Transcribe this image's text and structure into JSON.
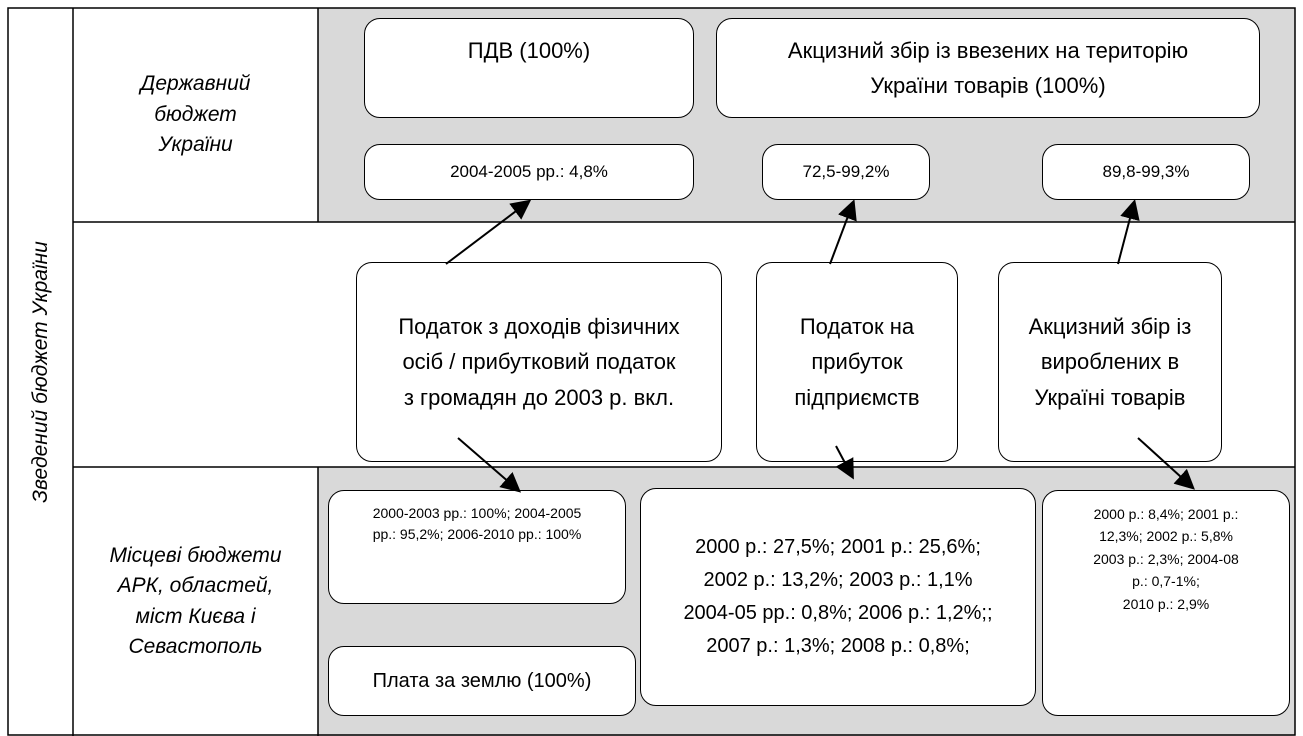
{
  "side_label": "Зведений бюджет України",
  "rows": [
    {
      "label": [
        "Державний",
        "бюджет",
        "України"
      ]
    },
    {
      "label": [
        "Місцеві бюджети",
        "АРК, областей,",
        "міст Києва і",
        "Севастополь"
      ]
    }
  ],
  "boxes": [
    {
      "lines": [
        "ПДВ (100%)"
      ]
    },
    {
      "lines": [
        "Акцизний збір із ввезених на територію",
        "України товарів (100%)"
      ]
    },
    {
      "lines": [
        "2004-2005 рр.: 4,8%"
      ]
    },
    {
      "lines": [
        "72,5-99,2%"
      ]
    },
    {
      "lines": [
        "89,8-99,3%"
      ]
    },
    {
      "lines": [
        "Податок з доходів фізичних",
        "осіб / прибутковий податок",
        "з громадян до 2003 р. вкл."
      ]
    },
    {
      "lines": [
        "Податок на",
        "прибуток",
        "підприємств"
      ]
    },
    {
      "lines": [
        "Акцизний збір із",
        "вироблених в",
        "Україні товарів"
      ]
    },
    {
      "lines": [
        "2000-2003 рр.: 100%; 2004-2005",
        "рр.: 95,2%; 2006-2010 рр.: 100%"
      ]
    },
    {
      "lines": [
        "Плата за землю (100%)"
      ]
    },
    {
      "lines": [
        "2000 р.: 27,5%; 2001 р.: 25,6%;",
        "2002 р.: 13,2%; 2003 р.: 1,1%",
        "2004-05 рр.: 0,8%; 2006 р.: 1,2%;;",
        "2007 р.: 1,3%; 2008 р.: 0,8%;"
      ]
    },
    {
      "lines": [
        "2000 р.: 8,4%; 2001 р.:",
        "12,3%; 2002 р.: 5,8%",
        "2003 р.: 2,3%; 2004-08",
        "р.: 0,7-1%;",
        "2010 р.: 2,9%"
      ]
    }
  ]
}
